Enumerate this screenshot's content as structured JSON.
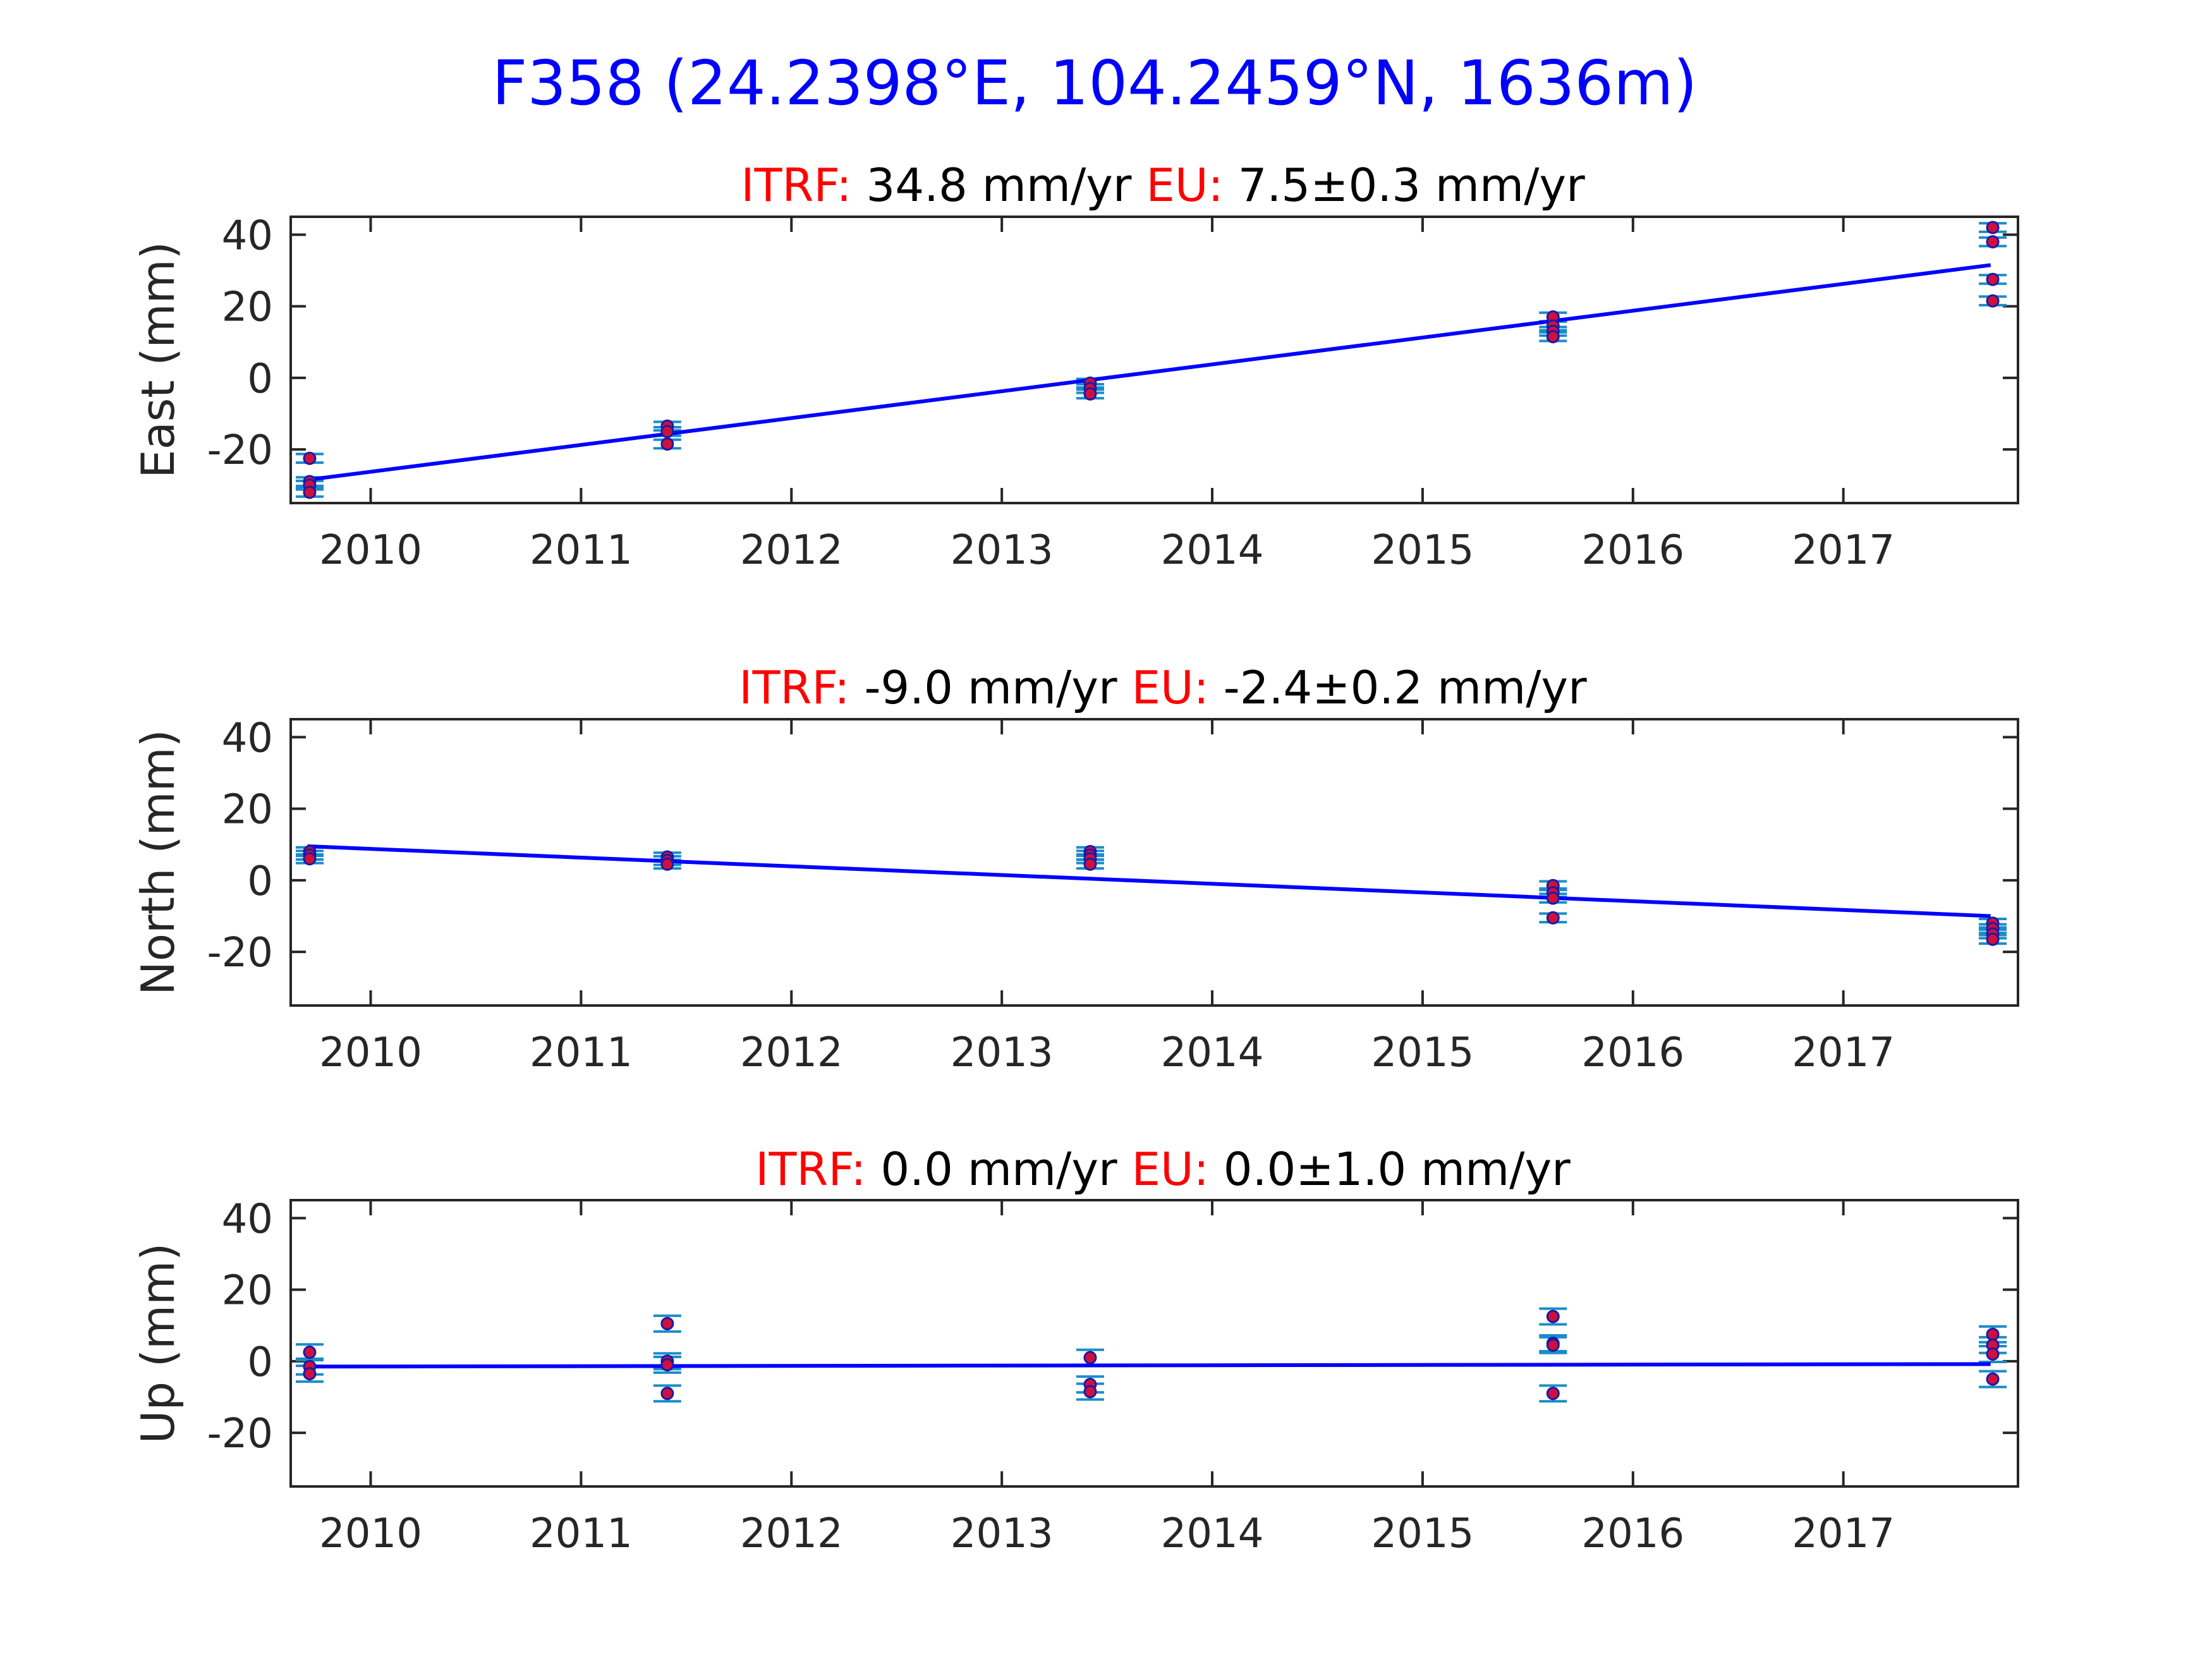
{
  "chart_data": {
    "type": "scatter",
    "title": "F358 (24.2398°E, 104.2459°N, 1636m)",
    "colors": {
      "title": "#0000ff",
      "label": "#ff0000",
      "fit": "#0000ff",
      "errorbar": "#1b8cc9",
      "marker": "#d0103a"
    },
    "xlim": [
      2009.62,
      2017.83
    ],
    "xticks": [
      2010,
      2011,
      2012,
      2013,
      2014,
      2015,
      2016,
      2017
    ],
    "panels": [
      {
        "ylabel": "East (mm)",
        "ylim": [
          -35,
          45
        ],
        "yticks": [
          -20,
          0,
          20,
          40
        ],
        "itrf_label": "ITRF:",
        "itrf_value": "34.8 mm/yr",
        "eu_label": "EU:",
        "eu_value": "7.5±0.3 mm/yr",
        "fit": {
          "x": [
            2009.7,
            2017.7
          ],
          "y": [
            -28.5,
            31.5
          ]
        },
        "points": [
          {
            "x": 2009.71,
            "y": -22.5,
            "err": 1.2
          },
          {
            "x": 2009.71,
            "y": -29,
            "err": 1.2
          },
          {
            "x": 2009.71,
            "y": -30,
            "err": 1.2
          },
          {
            "x": 2009.71,
            "y": -32,
            "err": 1.2
          },
          {
            "x": 2011.41,
            "y": -13.5,
            "err": 1.2
          },
          {
            "x": 2011.41,
            "y": -15,
            "err": 1.2
          },
          {
            "x": 2011.41,
            "y": -18.5,
            "err": 1.2
          },
          {
            "x": 2013.42,
            "y": -1.5,
            "err": 1.2
          },
          {
            "x": 2013.42,
            "y": -3,
            "err": 1.2
          },
          {
            "x": 2013.42,
            "y": -4.5,
            "err": 1.2
          },
          {
            "x": 2015.62,
            "y": 17,
            "err": 1.2
          },
          {
            "x": 2015.62,
            "y": 14.5,
            "err": 1.2
          },
          {
            "x": 2015.62,
            "y": 13,
            "err": 1.2
          },
          {
            "x": 2015.62,
            "y": 11.5,
            "err": 1.2
          },
          {
            "x": 2017.71,
            "y": 42,
            "err": 1.2
          },
          {
            "x": 2017.71,
            "y": 38,
            "err": 1.2
          },
          {
            "x": 2017.71,
            "y": 27.5,
            "err": 1.2
          },
          {
            "x": 2017.71,
            "y": 21.5,
            "err": 1.2
          }
        ]
      },
      {
        "ylabel": "North (mm)",
        "ylim": [
          -35,
          45
        ],
        "yticks": [
          -20,
          0,
          20,
          40
        ],
        "itrf_label": "ITRF:",
        "itrf_value": "-9.0 mm/yr",
        "eu_label": "EU:",
        "eu_value": "-2.4±0.2 mm/yr",
        "fit": {
          "x": [
            2009.7,
            2017.7
          ],
          "y": [
            9.5,
            -10
          ]
        },
        "points": [
          {
            "x": 2009.71,
            "y": 8,
            "err": 1.2
          },
          {
            "x": 2009.71,
            "y": 7,
            "err": 1.2
          },
          {
            "x": 2009.71,
            "y": 6,
            "err": 1.2
          },
          {
            "x": 2011.41,
            "y": 6.5,
            "err": 1.2
          },
          {
            "x": 2011.41,
            "y": 5.5,
            "err": 1.2
          },
          {
            "x": 2011.41,
            "y": 4.5,
            "err": 1.2
          },
          {
            "x": 2013.42,
            "y": 8,
            "err": 1.2
          },
          {
            "x": 2013.42,
            "y": 7,
            "err": 1.2
          },
          {
            "x": 2013.42,
            "y": 6,
            "err": 1.2
          },
          {
            "x": 2013.42,
            "y": 4.5,
            "err": 1.2
          },
          {
            "x": 2015.62,
            "y": -1.5,
            "err": 1.2
          },
          {
            "x": 2015.62,
            "y": -3.5,
            "err": 1.2
          },
          {
            "x": 2015.62,
            "y": -5,
            "err": 1.2
          },
          {
            "x": 2015.62,
            "y": -10.5,
            "err": 1.2
          },
          {
            "x": 2017.71,
            "y": -12,
            "err": 1.2
          },
          {
            "x": 2017.71,
            "y": -13.5,
            "err": 1.2
          },
          {
            "x": 2017.71,
            "y": -15,
            "err": 1.2
          },
          {
            "x": 2017.71,
            "y": -16.5,
            "err": 1.2
          }
        ]
      },
      {
        "ylabel": "Up (mm)",
        "ylim": [
          -35,
          45
        ],
        "yticks": [
          -20,
          0,
          20,
          40
        ],
        "itrf_label": "ITRF:",
        "itrf_value": "0.0 mm/yr",
        "eu_label": "EU:",
        "eu_value": "0.0±1.0 mm/yr",
        "fit": {
          "x": [
            2009.7,
            2017.7
          ],
          "y": [
            -1.5,
            -0.8
          ]
        },
        "points": [
          {
            "x": 2009.71,
            "y": 2.5,
            "err": 2.2
          },
          {
            "x": 2009.71,
            "y": -1.5,
            "err": 2.2
          },
          {
            "x": 2009.71,
            "y": -3.5,
            "err": 2.2
          },
          {
            "x": 2011.41,
            "y": 10.5,
            "err": 2.2
          },
          {
            "x": 2011.41,
            "y": 0,
            "err": 2.2
          },
          {
            "x": 2011.41,
            "y": -1,
            "err": 2.2
          },
          {
            "x": 2011.41,
            "y": -9,
            "err": 2.2
          },
          {
            "x": 2013.42,
            "y": 1,
            "err": 2.2
          },
          {
            "x": 2013.42,
            "y": -6.5,
            "err": 2.2
          },
          {
            "x": 2013.42,
            "y": -8.5,
            "err": 2.2
          },
          {
            "x": 2015.62,
            "y": 12.5,
            "err": 2.2
          },
          {
            "x": 2015.62,
            "y": 5,
            "err": 2.2
          },
          {
            "x": 2015.62,
            "y": 4.5,
            "err": 2.2
          },
          {
            "x": 2015.62,
            "y": -9,
            "err": 2.2
          },
          {
            "x": 2017.71,
            "y": 7.5,
            "err": 2.2
          },
          {
            "x": 2017.71,
            "y": 4.5,
            "err": 2.2
          },
          {
            "x": 2017.71,
            "y": 2,
            "err": 2.2
          },
          {
            "x": 2017.71,
            "y": -5,
            "err": 2.2
          }
        ]
      }
    ]
  }
}
